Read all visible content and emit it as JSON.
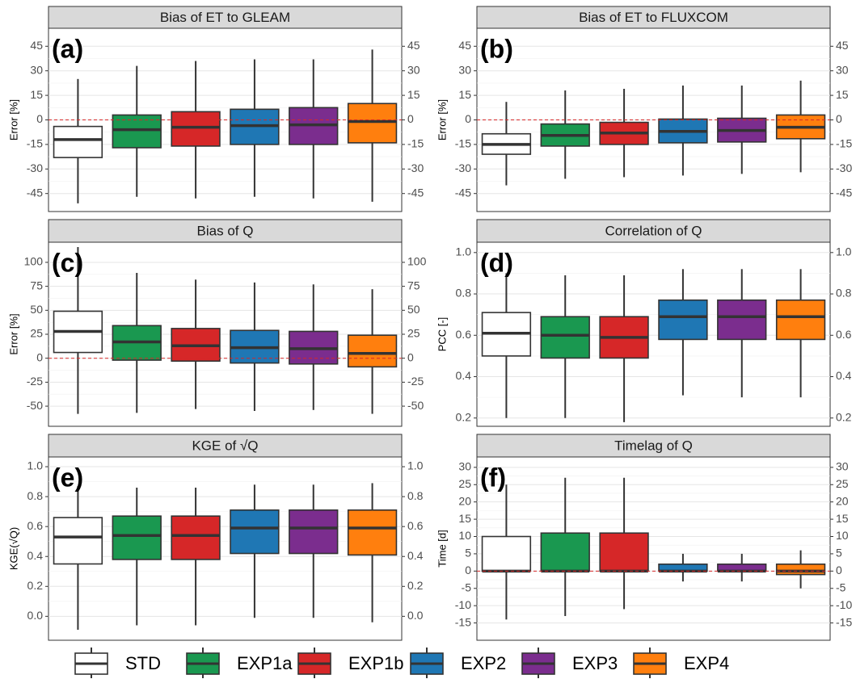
{
  "series_styles": [
    {
      "name": "STD",
      "color": "#ffffff"
    },
    {
      "name": "EXP1a",
      "color": "#1a9850"
    },
    {
      "name": "EXP1b",
      "color": "#d62728"
    },
    {
      "name": "EXP2",
      "color": "#1f77b4"
    },
    {
      "name": "EXP3",
      "color": "#7b2d8e"
    },
    {
      "name": "EXP4",
      "color": "#ff7f0e"
    }
  ],
  "chart_data": [
    {
      "type": "box",
      "title": "Bias of ET to GLEAM",
      "panel_label": "(a)",
      "y_label": "Error [%]",
      "hline": 0,
      "ylim": [
        -56,
        56
      ],
      "yticks": [
        -45,
        -30,
        -15,
        0,
        15,
        30,
        45
      ],
      "series": [
        {
          "whisker_low": -51,
          "q1": -23,
          "median": -12,
          "q3": -4,
          "whisker_high": 25
        },
        {
          "whisker_low": -47,
          "q1": -17,
          "median": -6,
          "q3": 3,
          "whisker_high": 33
        },
        {
          "whisker_low": -48,
          "q1": -16,
          "median": -4.5,
          "q3": 5,
          "whisker_high": 36
        },
        {
          "whisker_low": -47,
          "q1": -15,
          "median": -3.5,
          "q3": 6.5,
          "whisker_high": 37
        },
        {
          "whisker_low": -48,
          "q1": -15,
          "median": -3,
          "q3": 7.5,
          "whisker_high": 37
        },
        {
          "whisker_low": -50,
          "q1": -14,
          "median": -1,
          "q3": 10,
          "whisker_high": 43
        }
      ]
    },
    {
      "type": "box",
      "title": "Bias of ET to FLUXCOM",
      "panel_label": "(b)",
      "y_label": "Error [%]",
      "hline": 0,
      "ylim": [
        -56,
        56
      ],
      "yticks": [
        -45,
        -30,
        -15,
        0,
        15,
        30,
        45
      ],
      "series": [
        {
          "whisker_low": -40,
          "q1": -21,
          "median": -15,
          "q3": -8.5,
          "whisker_high": 11
        },
        {
          "whisker_low": -36,
          "q1": -16,
          "median": -9.5,
          "q3": -2.5,
          "whisker_high": 18
        },
        {
          "whisker_low": -35,
          "q1": -15,
          "median": -8,
          "q3": -1.5,
          "whisker_high": 19
        },
        {
          "whisker_low": -34,
          "q1": -14,
          "median": -7,
          "q3": 0.5,
          "whisker_high": 21
        },
        {
          "whisker_low": -33,
          "q1": -13.5,
          "median": -6.5,
          "q3": 1,
          "whisker_high": 21
        },
        {
          "whisker_low": -32,
          "q1": -11.5,
          "median": -4.5,
          "q3": 3,
          "whisker_high": 24
        }
      ]
    },
    {
      "type": "box",
      "title": "Bias of Q",
      "panel_label": "(c)",
      "y_label": "Error [%]",
      "hline": 0,
      "ylim": [
        -71,
        121
      ],
      "yticks": [
        -50,
        -25,
        0,
        25,
        50,
        75,
        100
      ],
      "series": [
        {
          "whisker_low": -58,
          "q1": 6,
          "median": 28,
          "q3": 49,
          "whisker_high": 116
        },
        {
          "whisker_low": -57,
          "q1": -2,
          "median": 17,
          "q3": 34,
          "whisker_high": 89
        },
        {
          "whisker_low": -53,
          "q1": -3,
          "median": 13,
          "q3": 31,
          "whisker_high": 82
        },
        {
          "whisker_low": -55,
          "q1": -5,
          "median": 11,
          "q3": 29,
          "whisker_high": 79
        },
        {
          "whisker_low": -54,
          "q1": -6,
          "median": 10,
          "q3": 28,
          "whisker_high": 77
        },
        {
          "whisker_low": -58,
          "q1": -9,
          "median": 5,
          "q3": 24,
          "whisker_high": 72
        }
      ]
    },
    {
      "type": "box",
      "title": "Correlation of Q",
      "panel_label": "(d)",
      "y_label": "PCC [-]",
      "ylim": [
        0.16,
        1.05
      ],
      "yticks": [
        0.2,
        0.4,
        0.6,
        0.8,
        {
          "value": 1,
          "label": "1.0"
        }
      ],
      "series": [
        {
          "whisker_low": 0.2,
          "q1": 0.5,
          "median": 0.61,
          "q3": 0.71,
          "whisker_high": 0.9
        },
        {
          "whisker_low": 0.2,
          "q1": 0.49,
          "median": 0.6,
          "q3": 0.69,
          "whisker_high": 0.89
        },
        {
          "whisker_low": 0.18,
          "q1": 0.49,
          "median": 0.59,
          "q3": 0.69,
          "whisker_high": 0.89
        },
        {
          "whisker_low": 0.31,
          "q1": 0.58,
          "median": 0.69,
          "q3": 0.77,
          "whisker_high": 0.92
        },
        {
          "whisker_low": 0.3,
          "q1": 0.58,
          "median": 0.69,
          "q3": 0.77,
          "whisker_high": 0.92
        },
        {
          "whisker_low": 0.3,
          "q1": 0.58,
          "median": 0.69,
          "q3": 0.77,
          "whisker_high": 0.92
        }
      ]
    },
    {
      "type": "box",
      "title": "KGE of √Q",
      "panel_label": "(e)",
      "y_label": "KGE(√Q)",
      "ylim": [
        -0.16,
        1.065
      ],
      "yticks": [
        {
          "value": 0,
          "label": "0.0"
        },
        0.2,
        0.4,
        0.6,
        0.8,
        {
          "value": 1,
          "label": "1.0"
        }
      ],
      "series": [
        {
          "whisker_low": -0.09,
          "q1": 0.35,
          "median": 0.53,
          "q3": 0.66,
          "whisker_high": 0.87
        },
        {
          "whisker_low": -0.06,
          "q1": 0.38,
          "median": 0.54,
          "q3": 0.67,
          "whisker_high": 0.86
        },
        {
          "whisker_low": -0.06,
          "q1": 0.38,
          "median": 0.54,
          "q3": 0.67,
          "whisker_high": 0.86
        },
        {
          "whisker_low": -0.01,
          "q1": 0.42,
          "median": 0.59,
          "q3": 0.71,
          "whisker_high": 0.88
        },
        {
          "whisker_low": -0.01,
          "q1": 0.42,
          "median": 0.59,
          "q3": 0.71,
          "whisker_high": 0.88
        },
        {
          "whisker_low": -0.04,
          "q1": 0.41,
          "median": 0.59,
          "q3": 0.71,
          "whisker_high": 0.89
        }
      ]
    },
    {
      "type": "box",
      "title": "Timelag of Q",
      "panel_label": "(f)",
      "y_label": "Time [d]",
      "hline": 0,
      "ylim": [
        -20,
        33
      ],
      "yticks": [
        -15,
        -10,
        -5,
        0,
        5,
        10,
        15,
        20,
        25,
        30
      ],
      "series": [
        {
          "whisker_low": -14,
          "q1": 0,
          "median": 0,
          "q3": 10,
          "whisker_high": 25
        },
        {
          "whisker_low": -13,
          "q1": 0,
          "median": 0,
          "q3": 11,
          "whisker_high": 27
        },
        {
          "whisker_low": -11,
          "q1": 0,
          "median": 0,
          "q3": 11,
          "whisker_high": 27
        },
        {
          "whisker_low": -3,
          "q1": 0,
          "median": 0,
          "q3": 2,
          "whisker_high": 5
        },
        {
          "whisker_low": -3,
          "q1": 0,
          "median": 0,
          "q3": 2,
          "whisker_high": 5
        },
        {
          "whisker_low": -5,
          "q1": -1,
          "median": 0,
          "q3": 2,
          "whisker_high": 6
        }
      ]
    }
  ]
}
